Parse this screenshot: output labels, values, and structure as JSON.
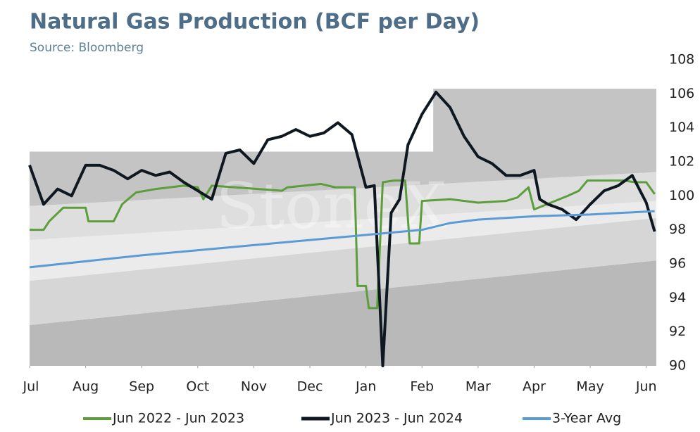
{
  "chart_data": {
    "type": "line",
    "title": "Natural Gas Production (BCF per Day)",
    "subtitle": "Source: Bloomberg",
    "watermark": "StoneX",
    "xlim": [
      0,
      11.18
    ],
    "xticks": [
      {
        "value": 0,
        "label": "Jul"
      },
      {
        "value": 1,
        "label": "Aug"
      },
      {
        "value": 2,
        "label": "Sep"
      },
      {
        "value": 3,
        "label": "Oct"
      },
      {
        "value": 4,
        "label": "Nov"
      },
      {
        "value": 5,
        "label": "Dec"
      },
      {
        "value": 6,
        "label": "Jan"
      },
      {
        "value": 7,
        "label": "Feb"
      },
      {
        "value": 8,
        "label": "Mar"
      },
      {
        "value": 9,
        "label": "Apr"
      },
      {
        "value": 10,
        "label": "May"
      },
      {
        "value": 11,
        "label": "Jun"
      }
    ],
    "ylim": [
      90,
      108
    ],
    "yticks": [
      90,
      92,
      94,
      96,
      98,
      100,
      102,
      104,
      106,
      108
    ],
    "bands": [
      {
        "color": "#b9b9b9",
        "x": [
          0,
          11.18
        ],
        "lower": [
          90,
          90
        ],
        "upper": [
          92.4,
          96.2
        ]
      },
      {
        "color": "#d6d6d6",
        "x": [
          0,
          11.18
        ],
        "lower": [
          92.4,
          96.2
        ],
        "upper": [
          95,
          98.7
        ]
      },
      {
        "color": "#ebebeb",
        "x": [
          0,
          11.18
        ],
        "lower": [
          95,
          98.7
        ],
        "upper": [
          97.4,
          99.7
        ]
      },
      {
        "color": "#c4c4c4",
        "x": [
          0,
          7.2,
          7.2,
          11.18
        ],
        "lower": [
          99.4,
          100.6,
          100.6,
          101.4
        ],
        "upper": [
          102.6,
          102.6,
          106.3,
          106.3
        ]
      },
      {
        "color": "#dedede",
        "x": [
          0,
          11.18
        ],
        "lower": [
          97.4,
          99.7
        ],
        "upper": [
          99.4,
          101.4
        ]
      }
    ],
    "series": [
      {
        "name": "Jun 2022 - Jun 2023",
        "color": "#5c9e3c",
        "width": 3,
        "x": [
          0,
          0.25,
          0.35,
          0.6,
          1.0,
          1.05,
          1.5,
          1.65,
          1.9,
          2.25,
          2.5,
          2.75,
          3.0,
          3.1,
          3.25,
          4.5,
          4.6,
          4.9,
          5.2,
          5.45,
          5.8,
          5.85,
          6.0,
          6.05,
          6.2,
          6.3,
          6.5,
          6.7,
          6.78,
          6.95,
          7.0,
          7.5,
          8.0,
          8.5,
          8.7,
          8.9,
          9.0,
          9.3,
          9.6,
          9.8,
          9.95,
          10.6,
          10.8,
          11.0,
          11.15
        ],
        "values": [
          98.0,
          98.0,
          98.5,
          99.3,
          99.3,
          98.5,
          98.5,
          99.5,
          100.2,
          100.4,
          100.5,
          100.6,
          100.5,
          99.8,
          100.6,
          100.3,
          100.5,
          100.6,
          100.7,
          100.5,
          100.5,
          94.7,
          94.7,
          93.4,
          93.4,
          100.8,
          100.9,
          100.9,
          97.2,
          97.2,
          99.7,
          99.8,
          99.6,
          99.7,
          99.9,
          100.5,
          99.2,
          99.6,
          100.0,
          100.3,
          100.9,
          100.9,
          100.8,
          100.8,
          100.1
        ]
      },
      {
        "name": "Jun 2023 - Jun 2024",
        "color": "#0f1720",
        "width": 4,
        "x": [
          0,
          0.25,
          0.5,
          0.75,
          1.0,
          1.25,
          1.5,
          1.75,
          2.0,
          2.25,
          2.5,
          2.75,
          3.0,
          3.25,
          3.5,
          3.75,
          4.0,
          4.25,
          4.5,
          4.75,
          5.0,
          5.25,
          5.5,
          5.75,
          6.0,
          6.15,
          6.3,
          6.45,
          6.6,
          6.75,
          7.0,
          7.25,
          7.5,
          7.75,
          8.0,
          8.25,
          8.5,
          8.75,
          9.0,
          9.1,
          9.25,
          9.5,
          9.75,
          10.0,
          10.25,
          10.5,
          10.75,
          11.0,
          11.15
        ],
        "values": [
          101.8,
          99.5,
          100.4,
          100.0,
          101.8,
          101.8,
          101.5,
          101.0,
          101.5,
          101.2,
          101.4,
          100.8,
          100.3,
          99.8,
          102.5,
          102.7,
          101.9,
          103.3,
          103.5,
          103.9,
          103.5,
          103.7,
          104.3,
          103.6,
          100.5,
          100.6,
          90.0,
          99.0,
          99.8,
          103.0,
          104.8,
          106.1,
          105.2,
          103.5,
          102.3,
          101.9,
          101.2,
          101.2,
          101.5,
          99.8,
          99.5,
          99.2,
          98.6,
          99.5,
          100.3,
          100.6,
          101.2,
          99.6,
          97.9
        ]
      },
      {
        "name": "3-Year Avg",
        "color": "#5b9bd5",
        "width": 3,
        "x": [
          0,
          2,
          4,
          6,
          7,
          7.5,
          8,
          9,
          10,
          11.15
        ],
        "values": [
          95.8,
          96.5,
          97.1,
          97.7,
          98.0,
          98.4,
          98.6,
          98.8,
          98.9,
          99.1
        ]
      }
    ]
  }
}
